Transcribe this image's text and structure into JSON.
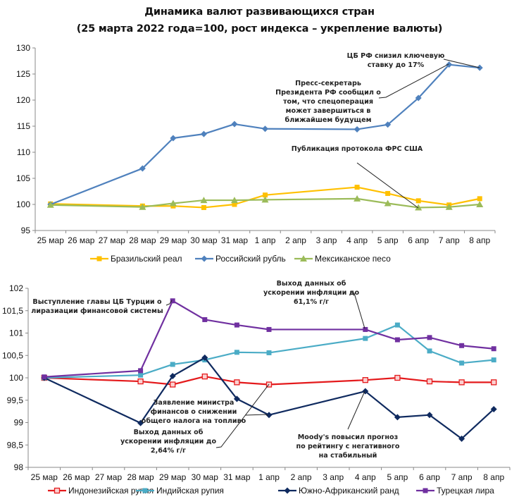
{
  "title_line1": "Динамика валют развивающихся стран",
  "title_line2": "(25 марта 2022 года=100, рост индекса – укрепление валюты)",
  "chart_data": [
    {
      "type": "line",
      "title": "Динамика валют развивающихся стран",
      "subtitle": "(25 марта 2022 года=100, рост индекса – укрепление валюты)",
      "xlabel": "",
      "ylabel": "",
      "categories": [
        "25 мар",
        "26 мар",
        "27 мар",
        "28 мар",
        "29 мар",
        "30 мар",
        "31 мар",
        "1 апр",
        "2 апр",
        "3 апр",
        "4 апр",
        "5 апр",
        "6 апр",
        "7 апр",
        "8 апр"
      ],
      "ylim": [
        95,
        130
      ],
      "yticks": [
        95,
        100,
        105,
        110,
        115,
        120,
        125,
        130
      ],
      "ytick_labels": [
        "95",
        "100",
        "105",
        "110",
        "115",
        "120",
        "125",
        "130"
      ],
      "grid": false,
      "legend_position": "bottom",
      "series": [
        {
          "name": "Бразильский реал",
          "color": "#FFC000",
          "marker": "square",
          "values": [
            100.1,
            null,
            null,
            99.7,
            99.7,
            99.4,
            100.0,
            101.8,
            null,
            null,
            103.3,
            102.1,
            100.7,
            99.9,
            101.1
          ]
        },
        {
          "name": "Российский рубль",
          "color": "#4F81BD",
          "marker": "diamond",
          "values": [
            100.0,
            null,
            null,
            106.9,
            112.7,
            113.5,
            115.4,
            114.5,
            null,
            null,
            114.4,
            115.3,
            120.4,
            126.8,
            126.2
          ]
        },
        {
          "name": "Мексиканское песо",
          "color": "#9BBB59",
          "marker": "triangle",
          "values": [
            99.9,
            null,
            null,
            99.5,
            100.2,
            100.8,
            100.8,
            100.9,
            null,
            null,
            101.1,
            100.2,
            99.4,
            99.5,
            100.0
          ]
        }
      ],
      "annotations": [
        {
          "lines": [
            "ЦБ РФ снизил ключевую",
            "ставку до 17%"
          ],
          "target": "7 апр / 8 апр"
        },
        {
          "lines": [
            "Пресс-секретарь",
            "Президента РФ сообщил о",
            "том, что спецоперация",
            "может завершиться в",
            "ближайшем будущем"
          ],
          "target": "7 апр"
        },
        {
          "lines": [
            "Публикация протокола ФРС США"
          ],
          "target": "6 апр"
        }
      ]
    },
    {
      "type": "line",
      "title": "",
      "xlabel": "",
      "ylabel": "",
      "categories": [
        "25 мар",
        "26 мар",
        "27 мар",
        "28 мар",
        "29 мар",
        "30 мар",
        "31 мар",
        "1 апр",
        "2 апр",
        "3 апр",
        "4 апр",
        "5 апр",
        "6 апр",
        "7 апр",
        "8 апр"
      ],
      "ylim": [
        98,
        102
      ],
      "yticks": [
        98,
        98.5,
        99,
        99.5,
        100,
        100.5,
        101,
        101.5,
        102
      ],
      "ytick_labels": [
        "98",
        "98,5",
        "99",
        "99,5",
        "100",
        "100,5",
        "101",
        "101,5",
        "102"
      ],
      "grid": false,
      "legend_position": "bottom",
      "series": [
        {
          "name": "Индонезийская рупия",
          "color": "#E41A1C",
          "marker": "square-open",
          "values": [
            100.0,
            null,
            null,
            99.92,
            99.85,
            100.03,
            99.9,
            99.85,
            null,
            null,
            99.95,
            100.0,
            99.92,
            99.9,
            99.9
          ]
        },
        {
          "name": "Индийская рупия",
          "color": "#4BACC6",
          "marker": "square",
          "values": [
            100.0,
            null,
            null,
            100.06,
            100.3,
            100.4,
            100.57,
            100.56,
            null,
            null,
            100.88,
            101.18,
            100.6,
            100.33,
            100.4
          ]
        },
        {
          "name": "Южно-Африканский ранд",
          "color": "#0F2A5F",
          "marker": "diamond",
          "values": [
            100.0,
            null,
            null,
            98.99,
            100.04,
            100.45,
            99.53,
            99.17,
            null,
            null,
            99.7,
            99.12,
            99.17,
            98.64,
            99.3
          ]
        },
        {
          "name": "Турецкая лира",
          "color": "#7030A0",
          "marker": "square",
          "values": [
            100.02,
            null,
            null,
            100.16,
            101.72,
            101.3,
            101.18,
            101.08,
            null,
            null,
            101.08,
            100.85,
            100.9,
            100.72,
            100.65
          ]
        }
      ],
      "annotations": [
        {
          "lines": [
            "Выступление главы ЦБ Турции о",
            "лиразиации финансовой системы"
          ],
          "target": "29 мар"
        },
        {
          "lines": [
            "Выход данных об",
            "ускорении инфляции до",
            "61,1% г/г"
          ],
          "target": "4 апр"
        },
        {
          "lines": [
            "Заявление министра",
            "финансов о снижении",
            "общего налога на топливо"
          ],
          "target": "1 апр"
        },
        {
          "lines": [
            "Выход данных об",
            "ускорении инфляции до",
            "2,64% г/г"
          ],
          "target": "1 апр"
        },
        {
          "lines": [
            "Moody's повысил прогноз",
            "по рейтингу с негативного",
            "на стабильный"
          ],
          "target": "4 апр"
        }
      ]
    }
  ]
}
